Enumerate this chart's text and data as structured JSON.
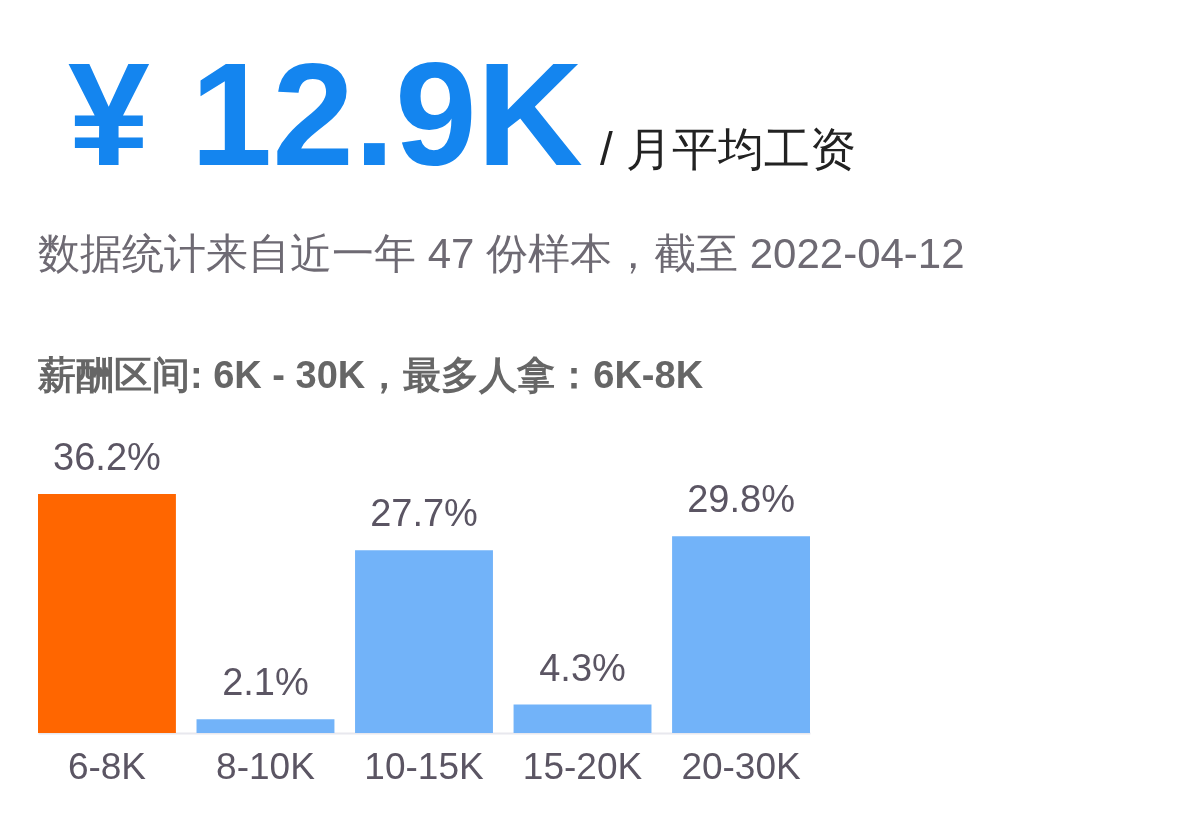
{
  "chart_data": {
    "type": "bar",
    "title": "¥ 12.9K",
    "subtitle": "数据统计来自近一年 47 份样本，截至 2022-04-12",
    "annotations": [
      "/ 月平均工资",
      "薪酬区间: 6K - 30K，最多人拿：6K-8K"
    ],
    "categories": [
      "6-8K",
      "8-10K",
      "10-15K",
      "15-20K",
      "20-30K"
    ],
    "values": [
      36.2,
      2.1,
      27.7,
      4.3,
      29.8
    ],
    "colors": [
      "#ff6600",
      "#72b3f9",
      "#72b3f9",
      "#72b3f9",
      "#72b3f9"
    ],
    "value_labels": [
      "36.2%",
      "2.1%",
      "27.7%",
      "4.3%",
      "29.8%"
    ],
    "tick_labels": "x",
    "grid": false
  }
}
